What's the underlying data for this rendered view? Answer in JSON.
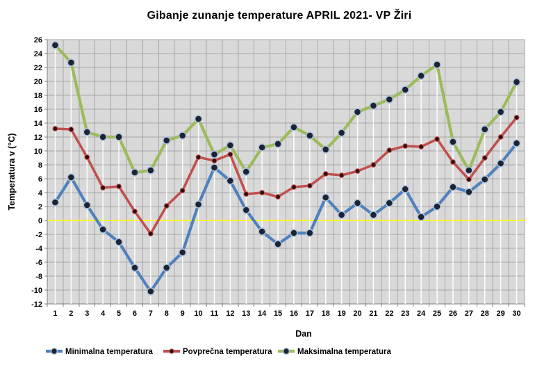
{
  "title": "Gibanje zunanje temperature APRIL 2021- VP Žiri",
  "chart_data": {
    "type": "line",
    "title": "Gibanje zunanje temperature APRIL 2021- VP Žiri",
    "xlabel": "Dan",
    "ylabel": "Temperatura v (°C)",
    "x": [
      1,
      2,
      3,
      4,
      5,
      6,
      7,
      8,
      9,
      10,
      11,
      12,
      13,
      14,
      15,
      16,
      17,
      18,
      19,
      20,
      21,
      22,
      23,
      24,
      25,
      26,
      27,
      28,
      29,
      30
    ],
    "ylim": [
      -12,
      26
    ],
    "ytick_step": 2,
    "grid": true,
    "legend_position": "bottom",
    "zero_line": true,
    "drop_lines": true,
    "colors": {
      "plot_bg": "#D9D9D9",
      "gridline": "#A6A6A6",
      "zero_line": "#FFFF00",
      "drop_line": "#FFFFFF",
      "axis_line": "#7F7F7F",
      "text": "#000000"
    },
    "series": [
      {
        "name": "Minimalna temperatura",
        "color": "#4F81BD",
        "stroke_width": 4.2,
        "marker_radius": 5,
        "marker_fill": "#1B2433",
        "marker_ring": "#AEC2DC",
        "values": [
          2.6,
          6.2,
          2.2,
          -1.3,
          -3.1,
          -6.8,
          -10.2,
          -6.8,
          -4.6,
          2.3,
          7.6,
          5.7,
          1.5,
          -1.6,
          -3.4,
          -1.8,
          -1.8,
          3.3,
          0.8,
          2.5,
          0.8,
          2.5,
          4.5,
          0.5,
          2.0,
          4.8,
          4.1,
          5.9,
          8.2,
          11.1
        ]
      },
      {
        "name": "Povprečna temperatura",
        "color": "#C0504D",
        "stroke_width": 3.6,
        "marker_radius": 3.4,
        "marker_fill": "#2F0F0F",
        "marker_ring": "#C0504D",
        "values": [
          13.2,
          13.1,
          9.1,
          4.7,
          4.9,
          1.3,
          -1.9,
          2.1,
          4.3,
          9.1,
          8.6,
          9.5,
          3.8,
          4.0,
          3.4,
          4.8,
          5.0,
          6.7,
          6.5,
          7.1,
          8.0,
          10.1,
          10.7,
          10.6,
          11.7,
          8.4,
          5.9,
          9.0,
          12.0,
          14.8
        ]
      },
      {
        "name": "Maksimalna temperatura",
        "color": "#9BBB59",
        "stroke_width": 4.2,
        "marker_radius": 5,
        "marker_fill": "#1B2433",
        "marker_ring": "#AEC2DC",
        "values": [
          25.2,
          22.7,
          12.7,
          12.0,
          12.0,
          6.9,
          7.2,
          11.5,
          12.2,
          14.6,
          9.5,
          10.8,
          7.0,
          10.5,
          11.0,
          13.4,
          12.2,
          10.2,
          12.6,
          15.6,
          16.5,
          17.4,
          18.8,
          20.8,
          22.4,
          11.3,
          7.2,
          13.1,
          15.6,
          19.9
        ]
      }
    ]
  }
}
